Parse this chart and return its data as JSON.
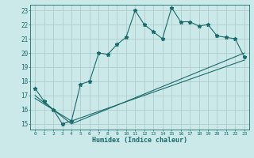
{
  "xlabel": "Humidex (Indice chaleur)",
  "background_color": "#cce9e9",
  "grid_color": "#b0cccc",
  "line_color": "#1a6b6b",
  "xlim": [
    -0.5,
    23.5
  ],
  "ylim": [
    14.6,
    23.4
  ],
  "xticks": [
    0,
    1,
    2,
    3,
    4,
    5,
    6,
    7,
    8,
    9,
    10,
    11,
    12,
    13,
    14,
    15,
    16,
    17,
    18,
    19,
    20,
    21,
    22,
    23
  ],
  "yticks": [
    15,
    16,
    17,
    18,
    19,
    20,
    21,
    22,
    23
  ],
  "line1_x": [
    0,
    1,
    2,
    3,
    4,
    5,
    6,
    7,
    8,
    9,
    10,
    11,
    12,
    13,
    14,
    15,
    16,
    17,
    18,
    19,
    20,
    21,
    22,
    23
  ],
  "line1_y": [
    17.5,
    16.6,
    16.0,
    15.0,
    15.2,
    17.8,
    18.0,
    20.0,
    19.9,
    20.6,
    21.1,
    23.0,
    22.0,
    21.5,
    21.0,
    23.2,
    22.2,
    22.2,
    21.9,
    22.0,
    21.2,
    21.1,
    21.0,
    19.7
  ],
  "line2_x": [
    0,
    4,
    23
  ],
  "line2_y": [
    17.0,
    15.0,
    20.0
  ],
  "line3_x": [
    0,
    4,
    23
  ],
  "line3_y": [
    16.8,
    15.2,
    19.5
  ]
}
